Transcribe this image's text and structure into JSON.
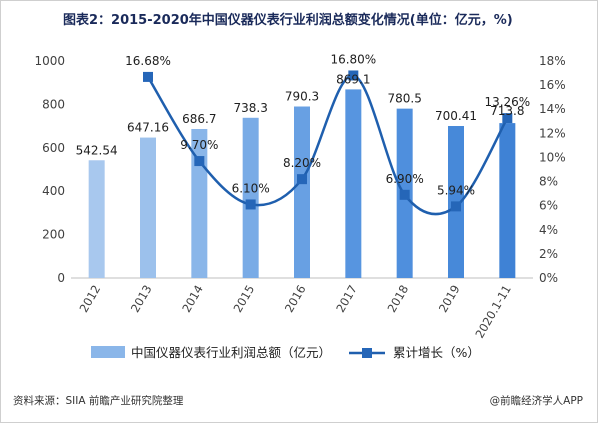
{
  "page": {
    "title": "图表2：2015-2020年中国仪器仪表行业利润总额变化情况(单位：亿元，%)",
    "source": "资料来源：SIIA 前瞻产业研究院整理",
    "brand": "@前瞻经济学人APP"
  },
  "chart_data": {
    "type": "bar",
    "title": "图表2：2015-2020年中国仪器仪表行业利润总额变化情况(单位：亿元，%)",
    "categories": [
      "2012",
      "2013",
      "2014",
      "2015",
      "2016",
      "2017",
      "2018",
      "2019",
      "2020.1-11"
    ],
    "series": [
      {
        "name": "中国仪器仪表行业利润总额（亿元）",
        "type": "bar",
        "axis": "left",
        "values": [
          542.54,
          647.16,
          686.7,
          738.3,
          790.3,
          869.1,
          780.5,
          700.41,
          713.8
        ],
        "labels": [
          "542.54",
          "647.16",
          "686.7",
          "738.3",
          "790.3",
          "869.1",
          "780.5",
          "700.41",
          "713.8"
        ]
      },
      {
        "name": "累计增长（%）",
        "type": "line",
        "axis": "right",
        "values": [
          null,
          16.68,
          9.7,
          6.1,
          8.2,
          16.8,
          6.9,
          5.94,
          13.26
        ],
        "labels": [
          "",
          "16.68%",
          "9.70%",
          "6.10%",
          "8.20%",
          "16.80%",
          "6.90%",
          "5.94%",
          "13.26%"
        ]
      }
    ],
    "y_left": {
      "min": 0,
      "max": 1000,
      "ticks": [
        "0",
        "200",
        "400",
        "600",
        "800",
        "1000"
      ]
    },
    "y_right": {
      "min": 0,
      "max": 18,
      "ticks": [
        "0%",
        "2%",
        "4%",
        "6%",
        "8%",
        "10%",
        "12%",
        "14%",
        "16%",
        "18%"
      ]
    },
    "grid": false,
    "legend_position": "bottom",
    "colors": {
      "bars": [
        "#a8c8ee",
        "#9cc1ec",
        "#8ab6e9",
        "#79abe6",
        "#68a0e3",
        "#5795e0",
        "#4f8fdd",
        "#4789d9",
        "#3f82d5"
      ],
      "line": "#1f5fae",
      "marker": "#2566b8",
      "axis": "#bfbfbf",
      "text": "#404040"
    }
  }
}
